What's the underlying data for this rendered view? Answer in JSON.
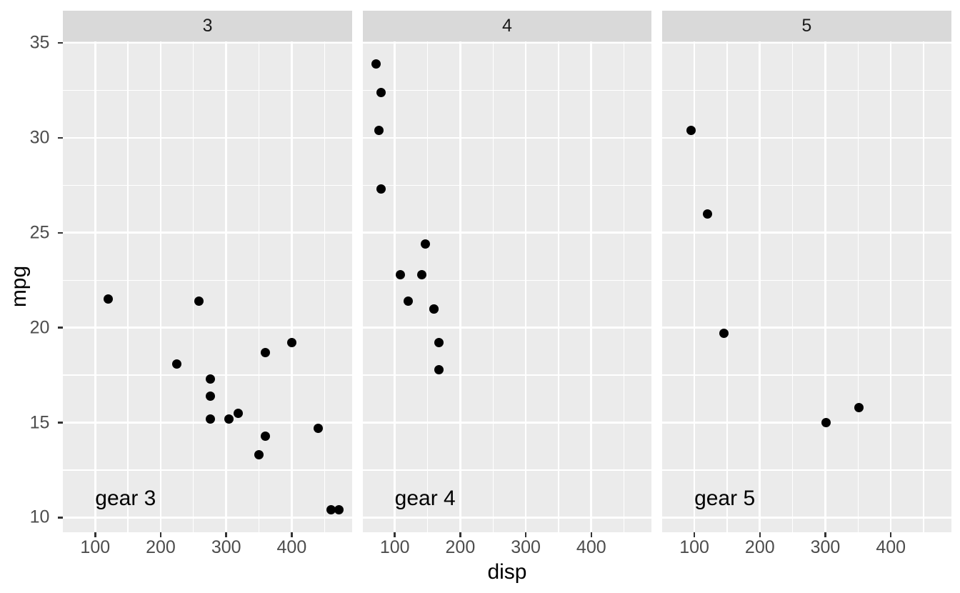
{
  "figure": {
    "background_color": "#FFFFFF",
    "panel_background_color": "#EBEBEB",
    "strip_background_color": "#D9D9D9",
    "grid_color": "#FFFFFF",
    "point_color": "#000000",
    "axis_text_color": "#4D4D4D",
    "strip_text_color": "#1A1A1A",
    "axis_title_color": "#000000",
    "annotation_color": "#000000",
    "tick_mark_color": "#333333"
  },
  "chart_data": {
    "type": "scatter",
    "title": "",
    "xlabel": "disp",
    "ylabel": "mpg",
    "facet_variable": "gear",
    "xlim": [
      51.05,
      492.05
    ],
    "ylim": [
      9.225,
      35.075
    ],
    "x_ticks": [
      100,
      200,
      300,
      400
    ],
    "x_minor_ticks": [
      50,
      150,
      250,
      350,
      450
    ],
    "y_ticks": [
      10,
      15,
      20,
      25,
      30,
      35
    ],
    "y_minor_ticks": [
      12.5,
      17.5,
      22.5,
      27.5,
      32.5
    ],
    "grid": true,
    "legend": "none",
    "facets": [
      {
        "strip_label": "3",
        "annotation": {
          "text": "gear 3",
          "x": 100,
          "y": 11,
          "halign": "left"
        },
        "points": [
          [
            120.1,
            21.5
          ],
          [
            225,
            18.1
          ],
          [
            258,
            21.4
          ],
          [
            275.8,
            17.3
          ],
          [
            275.8,
            16.4
          ],
          [
            275.8,
            15.2
          ],
          [
            304,
            15.2
          ],
          [
            318,
            15.5
          ],
          [
            350,
            13.3
          ],
          [
            360,
            18.7
          ],
          [
            360,
            14.3
          ],
          [
            400,
            19.2
          ],
          [
            440,
            14.7
          ],
          [
            460,
            10.4
          ],
          [
            472,
            10.4
          ]
        ]
      },
      {
        "strip_label": "4",
        "annotation": {
          "text": "gear 4",
          "x": 100,
          "y": 11,
          "halign": "left"
        },
        "points": [
          [
            71.1,
            33.9
          ],
          [
            75.7,
            30.4
          ],
          [
            78.7,
            32.4
          ],
          [
            79,
            27.3
          ],
          [
            108,
            22.8
          ],
          [
            121,
            21.4
          ],
          [
            140.8,
            22.8
          ],
          [
            146.7,
            24.4
          ],
          [
            160,
            21.0
          ],
          [
            160,
            21.0
          ],
          [
            167.6,
            19.2
          ],
          [
            167.6,
            17.8
          ]
        ]
      },
      {
        "strip_label": "5",
        "annotation": {
          "text": "gear 5",
          "x": 100,
          "y": 11,
          "halign": "left"
        },
        "points": [
          [
            95.1,
            30.4
          ],
          [
            120.3,
            26.0
          ],
          [
            145,
            19.7
          ],
          [
            301,
            15.0
          ],
          [
            351,
            15.8
          ]
        ]
      }
    ]
  }
}
